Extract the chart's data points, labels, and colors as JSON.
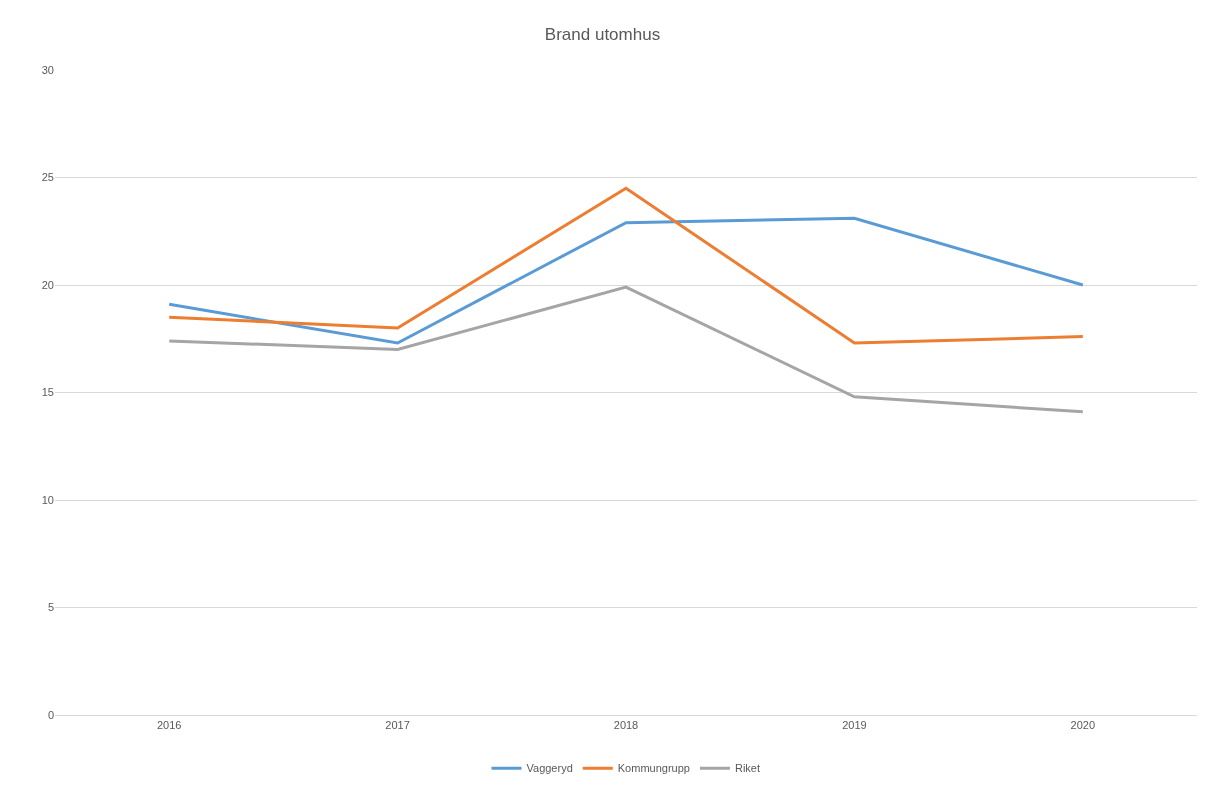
{
  "chart_data": {
    "type": "line",
    "title": "Brand utomhus",
    "categories": [
      "2016",
      "2017",
      "2018",
      "2019",
      "2020"
    ],
    "series": [
      {
        "name": "Vaggeryd",
        "color": "#5b9bd5",
        "values": [
          19.1,
          17.3,
          22.9,
          23.1,
          20.0
        ]
      },
      {
        "name": "Kommungrupp",
        "color": "#ed7d31",
        "values": [
          18.5,
          18.0,
          24.5,
          17.3,
          17.6
        ]
      },
      {
        "name": "Riket",
        "color": "#a5a5a5",
        "values": [
          17.4,
          17.0,
          19.9,
          14.8,
          14.1
        ]
      }
    ],
    "ylim": [
      0,
      30
    ],
    "yticks": [
      0,
      5,
      10,
      15,
      20,
      25,
      30
    ],
    "grid": "y",
    "legend": "bottom",
    "marker": "none",
    "line_style": "solid"
  }
}
